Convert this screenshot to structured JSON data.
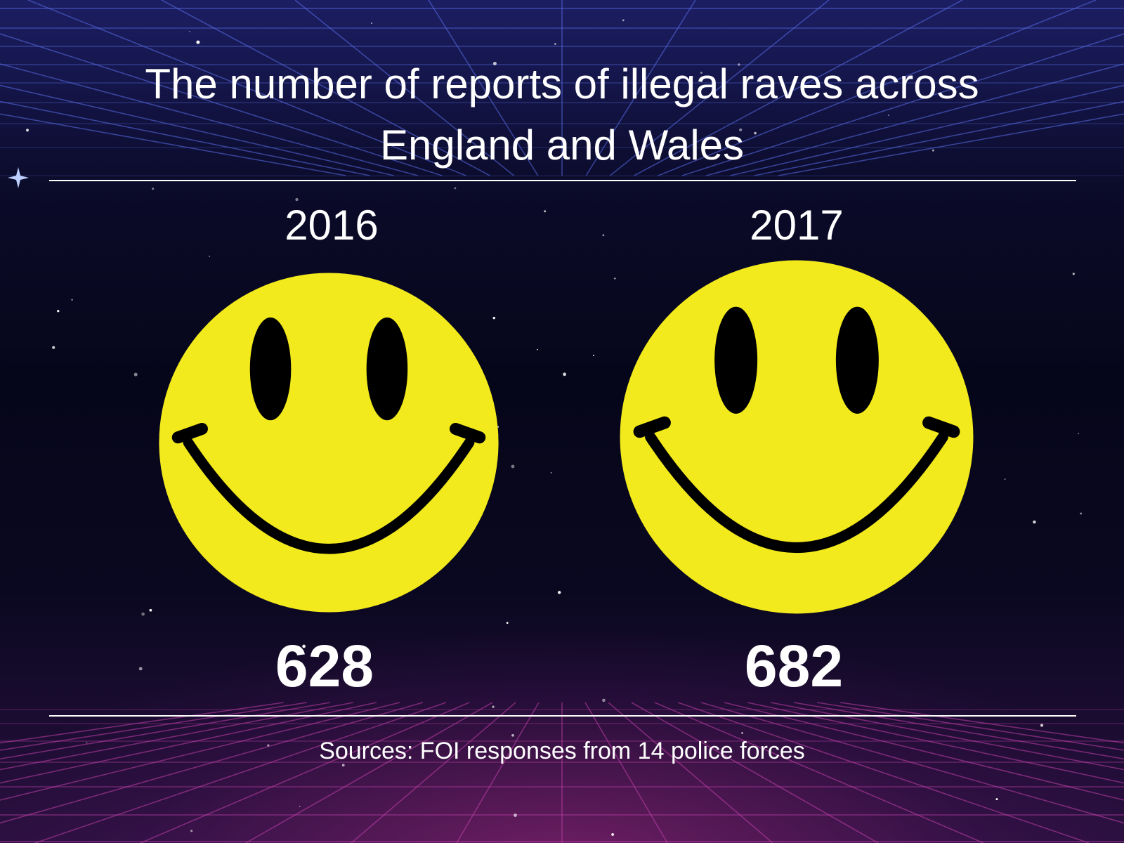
{
  "title": {
    "line1": "The number of reports of illegal raves across",
    "line2": "England and Wales"
  },
  "source": "Sources: FOI responses from 14 police forces",
  "colors": {
    "face_fill": "#f2ea1c",
    "face_features": "#000000",
    "grid": "#5a6ee8",
    "grid_bottom": "#c040a8",
    "text": "#ffffff"
  },
  "icons": [
    "smiley-face-icon",
    "smiley-face-icon"
  ],
  "chart_data": {
    "type": "table",
    "title": "The number of reports of illegal raves across England and Wales",
    "categories": [
      "2016",
      "2017"
    ],
    "values": [
      628,
      682
    ],
    "rows": [
      {
        "year": "2016",
        "value": "628"
      },
      {
        "year": "2017",
        "value": "682"
      }
    ],
    "grid": false,
    "legend": "none"
  }
}
